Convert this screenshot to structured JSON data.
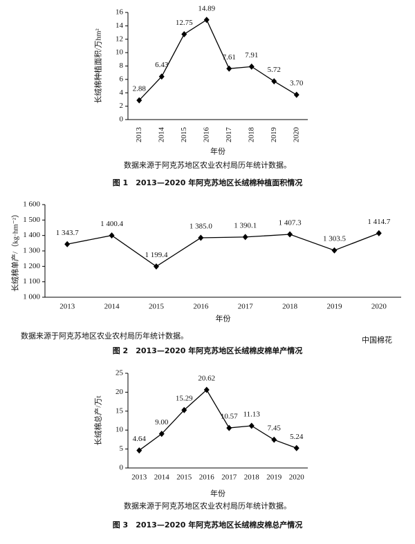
{
  "chart_data": [
    {
      "type": "line",
      "xlabel": "年份",
      "ylabel": "长绒棉种植面积/万hm²",
      "categories": [
        "2013",
        "2014",
        "2015",
        "2016",
        "2017",
        "2018",
        "2019",
        "2020"
      ],
      "values": [
        2.88,
        6.43,
        12.75,
        14.89,
        7.61,
        7.91,
        5.72,
        3.7
      ],
      "value_labels": [
        "2.88",
        "6.43",
        "12.75",
        "14.89",
        "7.61",
        "7.91",
        "5.72",
        "3.70"
      ],
      "ylim": [
        0,
        16
      ],
      "yticks": [
        0,
        2,
        4,
        6,
        8,
        10,
        12,
        14,
        16
      ],
      "color": "#000000",
      "note": "数据来源于阿克苏地区农业农村局历年统计数据。",
      "caption": "图 1　2013—2020 年阿克苏地区长绒棉种植面积情况"
    },
    {
      "type": "line",
      "xlabel": "年份",
      "ylabel": "长绒棉单产/（kg·hm⁻²）",
      "categories": [
        "2013",
        "2014",
        "2015",
        "2016",
        "2017",
        "2018",
        "2019",
        "2020"
      ],
      "values": [
        1343.7,
        1400.4,
        1199.4,
        1385.0,
        1390.1,
        1407.3,
        1303.5,
        1414.7
      ],
      "value_labels": [
        "1 343.7",
        "1 400.4",
        "1 199.4",
        "1 385.0",
        "1 390.1",
        "1 407.3",
        "1 303.5",
        "1 414.7"
      ],
      "ylim": [
        1000,
        1600
      ],
      "yticks": [
        {
          "value": 1000,
          "label": "1 000"
        },
        {
          "value": 1100,
          "label": "1 100"
        },
        {
          "value": 1200,
          "label": "1 200"
        },
        {
          "value": 1300,
          "label": "1 300"
        },
        {
          "value": 1400,
          "label": "1 400"
        },
        {
          "value": 1500,
          "label": "1 500"
        },
        {
          "value": 1600,
          "label": "1 600"
        }
      ],
      "color": "#000000",
      "note": "数据来源于阿克苏地区农业农村局历年统计数据。",
      "caption": "图 2　2013—2020 年阿克苏地区长绒棉皮棉单产情况",
      "watermark": "中国棉花"
    },
    {
      "type": "line",
      "xlabel": "年份",
      "ylabel": "长绒棉总产/万t",
      "categories": [
        "2013",
        "2014",
        "2015",
        "2016",
        "2017",
        "2018",
        "2019",
        "2020"
      ],
      "values": [
        4.64,
        9.0,
        15.29,
        20.62,
        10.57,
        11.13,
        7.45,
        5.24
      ],
      "value_labels": [
        "4.64",
        "9.00",
        "15.29",
        "20.62",
        "10.57",
        "11.13",
        "7.45",
        "5.24"
      ],
      "ylim": [
        0,
        25
      ],
      "yticks": [
        0,
        5,
        10,
        15,
        20,
        25
      ],
      "color": "#000000",
      "note": "数据来源于阿克苏地区农业农村局历年统计数据。",
      "caption": "图 3　2013—2020 年阿克苏地区长绒棉皮棉总产情况"
    }
  ]
}
